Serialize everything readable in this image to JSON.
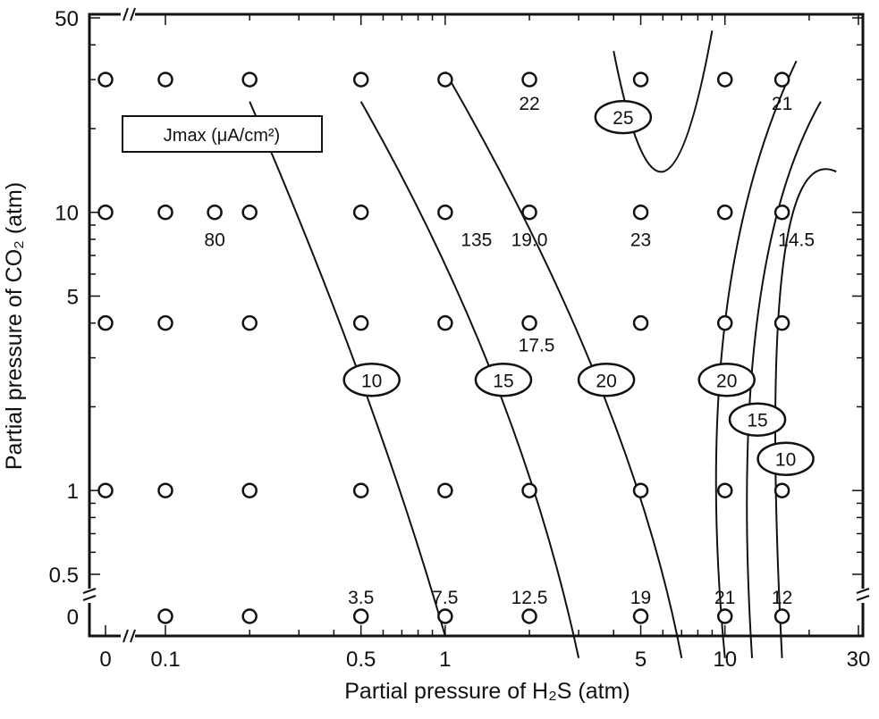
{
  "chart_data": {
    "type": "scatter",
    "xlabel": "Partial pressure of H₂S (atm)",
    "ylabel": "Partial pressure of CO₂ (atm)",
    "x_scale": "log (broken at 0)",
    "y_scale": "log (broken at 0)",
    "xlim": [
      0,
      30
    ],
    "ylim": [
      0,
      50
    ],
    "x_ticks": [
      "0",
      "0.1",
      "0.5",
      "1",
      "5",
      "10",
      "30"
    ],
    "y_ticks": [
      "0",
      "0.5",
      "1",
      "5",
      "10",
      "50"
    ],
    "legend": "Jmax (μA/cm²)",
    "grid": false,
    "points": [
      {
        "x": 0,
        "y": 30
      },
      {
        "x": 0.1,
        "y": 30
      },
      {
        "x": 0.2,
        "y": 30
      },
      {
        "x": 0.5,
        "y": 30
      },
      {
        "x": 1,
        "y": 30
      },
      {
        "x": 2,
        "y": 30
      },
      {
        "x": 5,
        "y": 30
      },
      {
        "x": 10,
        "y": 30
      },
      {
        "x": 16,
        "y": 30
      },
      {
        "x": 0,
        "y": 10
      },
      {
        "x": 0.1,
        "y": 10
      },
      {
        "x": 0.15,
        "y": 10
      },
      {
        "x": 0.2,
        "y": 10
      },
      {
        "x": 0.5,
        "y": 10
      },
      {
        "x": 1,
        "y": 10
      },
      {
        "x": 2,
        "y": 10
      },
      {
        "x": 5,
        "y": 10
      },
      {
        "x": 10,
        "y": 10
      },
      {
        "x": 16,
        "y": 10
      },
      {
        "x": 0,
        "y": 4
      },
      {
        "x": 0.1,
        "y": 4
      },
      {
        "x": 0.2,
        "y": 4
      },
      {
        "x": 0.5,
        "y": 4
      },
      {
        "x": 1,
        "y": 4
      },
      {
        "x": 2,
        "y": 4
      },
      {
        "x": 5,
        "y": 4
      },
      {
        "x": 10,
        "y": 4
      },
      {
        "x": 16,
        "y": 4
      },
      {
        "x": 0,
        "y": 1
      },
      {
        "x": 0.1,
        "y": 1
      },
      {
        "x": 0.2,
        "y": 1
      },
      {
        "x": 0.5,
        "y": 1
      },
      {
        "x": 1,
        "y": 1
      },
      {
        "x": 2,
        "y": 1
      },
      {
        "x": 5,
        "y": 1
      },
      {
        "x": 10,
        "y": 1
      },
      {
        "x": 16,
        "y": 1
      },
      {
        "x": 0.1,
        "y": 0
      },
      {
        "x": 0.2,
        "y": 0
      },
      {
        "x": 0.5,
        "y": 0
      },
      {
        "x": 1,
        "y": 0
      },
      {
        "x": 2,
        "y": 0
      },
      {
        "x": 5,
        "y": 0
      },
      {
        "x": 10,
        "y": 0
      },
      {
        "x": 16,
        "y": 0
      }
    ],
    "value_labels": [
      {
        "text": "80",
        "x": 0.15,
        "y": 10
      },
      {
        "text": "135",
        "x": 1,
        "y": 10
      },
      {
        "text": "22",
        "x": 2,
        "y": 30
      },
      {
        "text": "19.0",
        "x": 2,
        "y": 10
      },
      {
        "text": "23",
        "x": 5,
        "y": 10
      },
      {
        "text": "21",
        "x": 16,
        "y": 30
      },
      {
        "text": "14.5",
        "x": 16,
        "y": 10
      },
      {
        "text": "17.5",
        "x": 2,
        "y": 4
      },
      {
        "text": "3.5",
        "x": 0.5,
        "y": 0
      },
      {
        "text": "7.5",
        "x": 1,
        "y": 0
      },
      {
        "text": "12.5",
        "x": 2,
        "y": 0
      },
      {
        "text": "19",
        "x": 5,
        "y": 0
      },
      {
        "text": "21",
        "x": 10,
        "y": 0
      },
      {
        "text": "12",
        "x": 16,
        "y": 0
      }
    ],
    "contours": [
      {
        "level": "10",
        "points": [
          [
            0.2,
            25
          ],
          [
            0.5,
            2.5
          ],
          [
            1,
            0.3
          ]
        ]
      },
      {
        "level": "15",
        "points": [
          [
            0.5,
            25
          ],
          [
            1.5,
            2.5
          ],
          [
            3,
            0.25
          ]
        ]
      },
      {
        "level": "20",
        "points": [
          [
            1,
            32
          ],
          [
            3.5,
            2.5
          ],
          [
            7,
            0.25
          ]
        ]
      },
      {
        "level": "25",
        "points": [
          [
            4,
            38
          ],
          [
            6,
            14
          ],
          [
            9,
            45
          ]
        ]
      },
      {
        "level": "20",
        "points": [
          [
            18,
            35
          ],
          [
            10,
            4
          ],
          [
            10,
            0.25
          ]
        ]
      },
      {
        "level": "15",
        "points": [
          [
            22,
            25
          ],
          [
            13,
            4
          ],
          [
            12.5,
            0.25
          ]
        ]
      },
      {
        "level": "10",
        "points": [
          [
            25,
            14
          ],
          [
            16,
            6
          ],
          [
            16,
            0.25
          ]
        ]
      }
    ]
  }
}
